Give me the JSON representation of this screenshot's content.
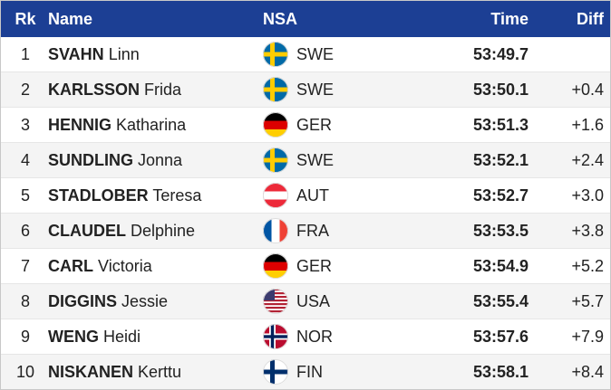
{
  "table": {
    "header": {
      "rank": "Rk",
      "name": "Name",
      "nsa": "NSA",
      "time": "Time",
      "diff": "Diff"
    },
    "rows": [
      {
        "rank": "1",
        "surname": "SVAHN",
        "firstname": "Linn",
        "nsa": "SWE",
        "time": "53:49.7"
      },
      {
        "rank": "2",
        "surname": "KARLSSON",
        "firstname": "Frida",
        "nsa": "SWE",
        "time": "53:50.1",
        "diff": "+0.4"
      },
      {
        "rank": "3",
        "surname": "HENNIG",
        "firstname": "Katharina",
        "nsa": "GER",
        "time": "53:51.3",
        "diff": "+1.6"
      },
      {
        "rank": "4",
        "surname": "SUNDLING",
        "firstname": "Jonna",
        "nsa": "SWE",
        "time": "53:52.1",
        "diff": "+2.4"
      },
      {
        "rank": "5",
        "surname": "STADLOBER",
        "firstname": "Teresa",
        "nsa": "AUT",
        "time": "53:52.7",
        "diff": "+3.0"
      },
      {
        "rank": "6",
        "surname": "CLAUDEL",
        "firstname": "Delphine",
        "nsa": "FRA",
        "time": "53:53.5",
        "diff": "+3.8"
      },
      {
        "rank": "7",
        "surname": "CARL",
        "firstname": "Victoria",
        "nsa": "GER",
        "time": "53:54.9",
        "diff": "+5.2"
      },
      {
        "rank": "8",
        "surname": "DIGGINS",
        "firstname": "Jessie",
        "nsa": "USA",
        "time": "53:55.4",
        "diff": "+5.7"
      },
      {
        "rank": "9",
        "surname": "WENG",
        "firstname": "Heidi",
        "nsa": "NOR",
        "time": "53:57.6",
        "diff": "+7.9"
      },
      {
        "rank": "10",
        "surname": "NISKANEN",
        "firstname": "Kerttu",
        "nsa": "FIN",
        "time": "53:58.1",
        "diff": "+8.4"
      }
    ]
  }
}
